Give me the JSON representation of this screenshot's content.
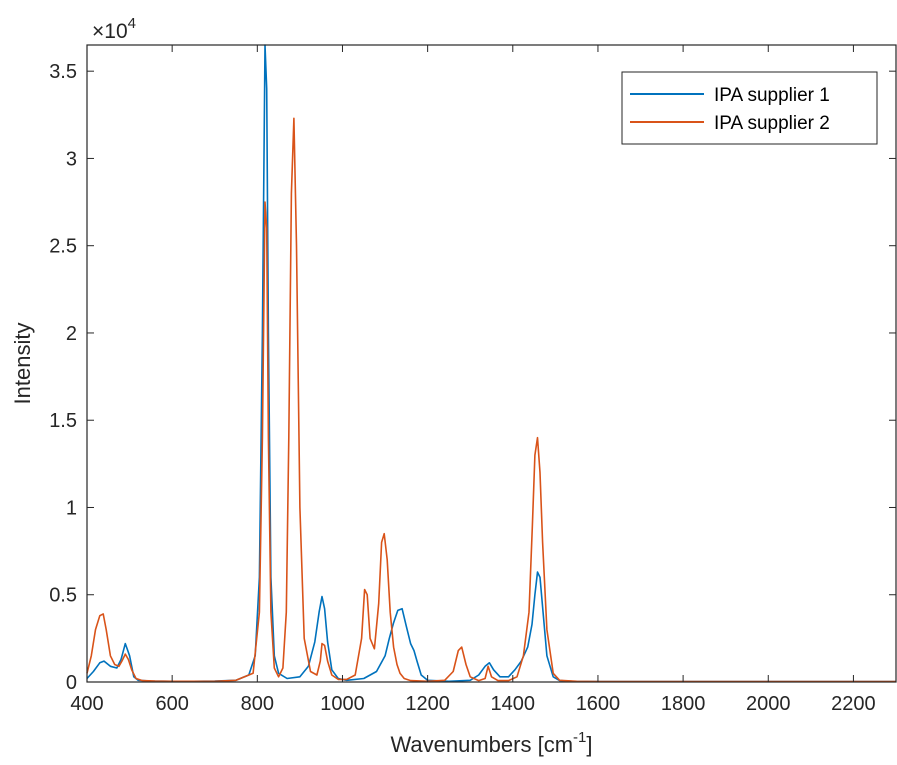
{
  "chart_data": {
    "type": "line",
    "xlabel": "Wavenumbers [cm",
    "xlabel_sup": "-1",
    "xlabel_suffix": "]",
    "ylabel": "Intensity",
    "y_exponent_label": "×10",
    "y_exponent_power": "4",
    "xlim": [
      400,
      2300
    ],
    "ylim": [
      0,
      36500
    ],
    "xticks": [
      400,
      600,
      800,
      1000,
      1200,
      1400,
      1600,
      1800,
      2000,
      2200
    ],
    "xtick_labels": [
      "400",
      "600",
      "800",
      "1000",
      "1200",
      "1400",
      "1600",
      "1800",
      "2000",
      "2200"
    ],
    "yticks": [
      0,
      5000,
      10000,
      15000,
      20000,
      25000,
      30000,
      35000
    ],
    "ytick_labels": [
      "0",
      "0.5",
      "1",
      "1.5",
      "2",
      "2.5",
      "3",
      "3.5"
    ],
    "grid": false,
    "legend_position": "top-right",
    "series": [
      {
        "name": "IPA supplier 1",
        "color": "#0072BD",
        "x": [
          400,
          415,
          430,
          440,
          455,
          470,
          480,
          490,
          500,
          510,
          520,
          550,
          600,
          650,
          700,
          750,
          780,
          795,
          805,
          812,
          818,
          822,
          826,
          832,
          840,
          850,
          870,
          900,
          920,
          935,
          945,
          952,
          958,
          965,
          975,
          990,
          1010,
          1050,
          1080,
          1100,
          1110,
          1120,
          1130,
          1140,
          1150,
          1160,
          1168,
          1175,
          1185,
          1200,
          1250,
          1300,
          1320,
          1335,
          1345,
          1355,
          1370,
          1390,
          1405,
          1420,
          1435,
          1445,
          1452,
          1458,
          1464,
          1470,
          1480,
          1495,
          1510,
          1550,
          1600,
          1700,
          1800,
          1900,
          2000,
          2100,
          2200,
          2300
        ],
        "y": [
          200,
          600,
          1100,
          1200,
          900,
          800,
          1300,
          2200,
          1500,
          300,
          100,
          60,
          40,
          40,
          50,
          100,
          400,
          1500,
          6000,
          20000,
          36500,
          34000,
          20000,
          6000,
          1500,
          500,
          200,
          300,
          900,
          2300,
          4000,
          4900,
          4200,
          2300,
          700,
          200,
          100,
          200,
          600,
          1500,
          2500,
          3400,
          4100,
          4200,
          3200,
          2200,
          1800,
          1200,
          400,
          100,
          40,
          100,
          400,
          900,
          1100,
          700,
          300,
          300,
          700,
          1200,
          2000,
          3300,
          5000,
          6300,
          6000,
          4300,
          1500,
          300,
          80,
          30,
          30,
          30,
          30,
          30,
          30,
          30,
          30,
          30
        ]
      },
      {
        "name": "IPA supplier 2",
        "color": "#D95319",
        "x": [
          400,
          410,
          420,
          430,
          438,
          445,
          455,
          465,
          475,
          482,
          490,
          497,
          505,
          515,
          530,
          560,
          600,
          650,
          700,
          750,
          790,
          805,
          812,
          818,
          822,
          826,
          832,
          840,
          850,
          860,
          868,
          874,
          880,
          886,
          892,
          900,
          910,
          925,
          940,
          948,
          952,
          958,
          965,
          975,
          990,
          1010,
          1030,
          1045,
          1052,
          1058,
          1065,
          1075,
          1085,
          1092,
          1098,
          1105,
          1112,
          1120,
          1128,
          1135,
          1145,
          1160,
          1200,
          1240,
          1260,
          1272,
          1280,
          1290,
          1300,
          1320,
          1335,
          1342,
          1350,
          1365,
          1390,
          1410,
          1425,
          1438,
          1446,
          1452,
          1458,
          1464,
          1470,
          1480,
          1495,
          1510,
          1550,
          1600,
          1700,
          1800,
          1900,
          2000,
          2100,
          2200,
          2300
        ],
        "y": [
          500,
          1500,
          3000,
          3800,
          3900,
          3000,
          1500,
          1000,
          900,
          1200,
          1600,
          1300,
          700,
          200,
          80,
          50,
          40,
          40,
          40,
          100,
          500,
          4000,
          14000,
          27500,
          26000,
          14000,
          4000,
          800,
          300,
          800,
          4000,
          14000,
          28000,
          32300,
          25000,
          10000,
          2500,
          600,
          400,
          1200,
          2200,
          2100,
          1200,
          400,
          150,
          150,
          400,
          2500,
          5300,
          5000,
          2500,
          1900,
          4500,
          8000,
          8500,
          7000,
          4000,
          2000,
          1000,
          500,
          200,
          80,
          40,
          100,
          600,
          1800,
          2000,
          1000,
          300,
          80,
          200,
          900,
          300,
          80,
          80,
          300,
          1500,
          4000,
          9000,
          13000,
          14000,
          12000,
          8000,
          3000,
          500,
          100,
          40,
          30,
          30,
          30,
          30,
          30,
          30,
          30,
          30
        ]
      }
    ]
  }
}
